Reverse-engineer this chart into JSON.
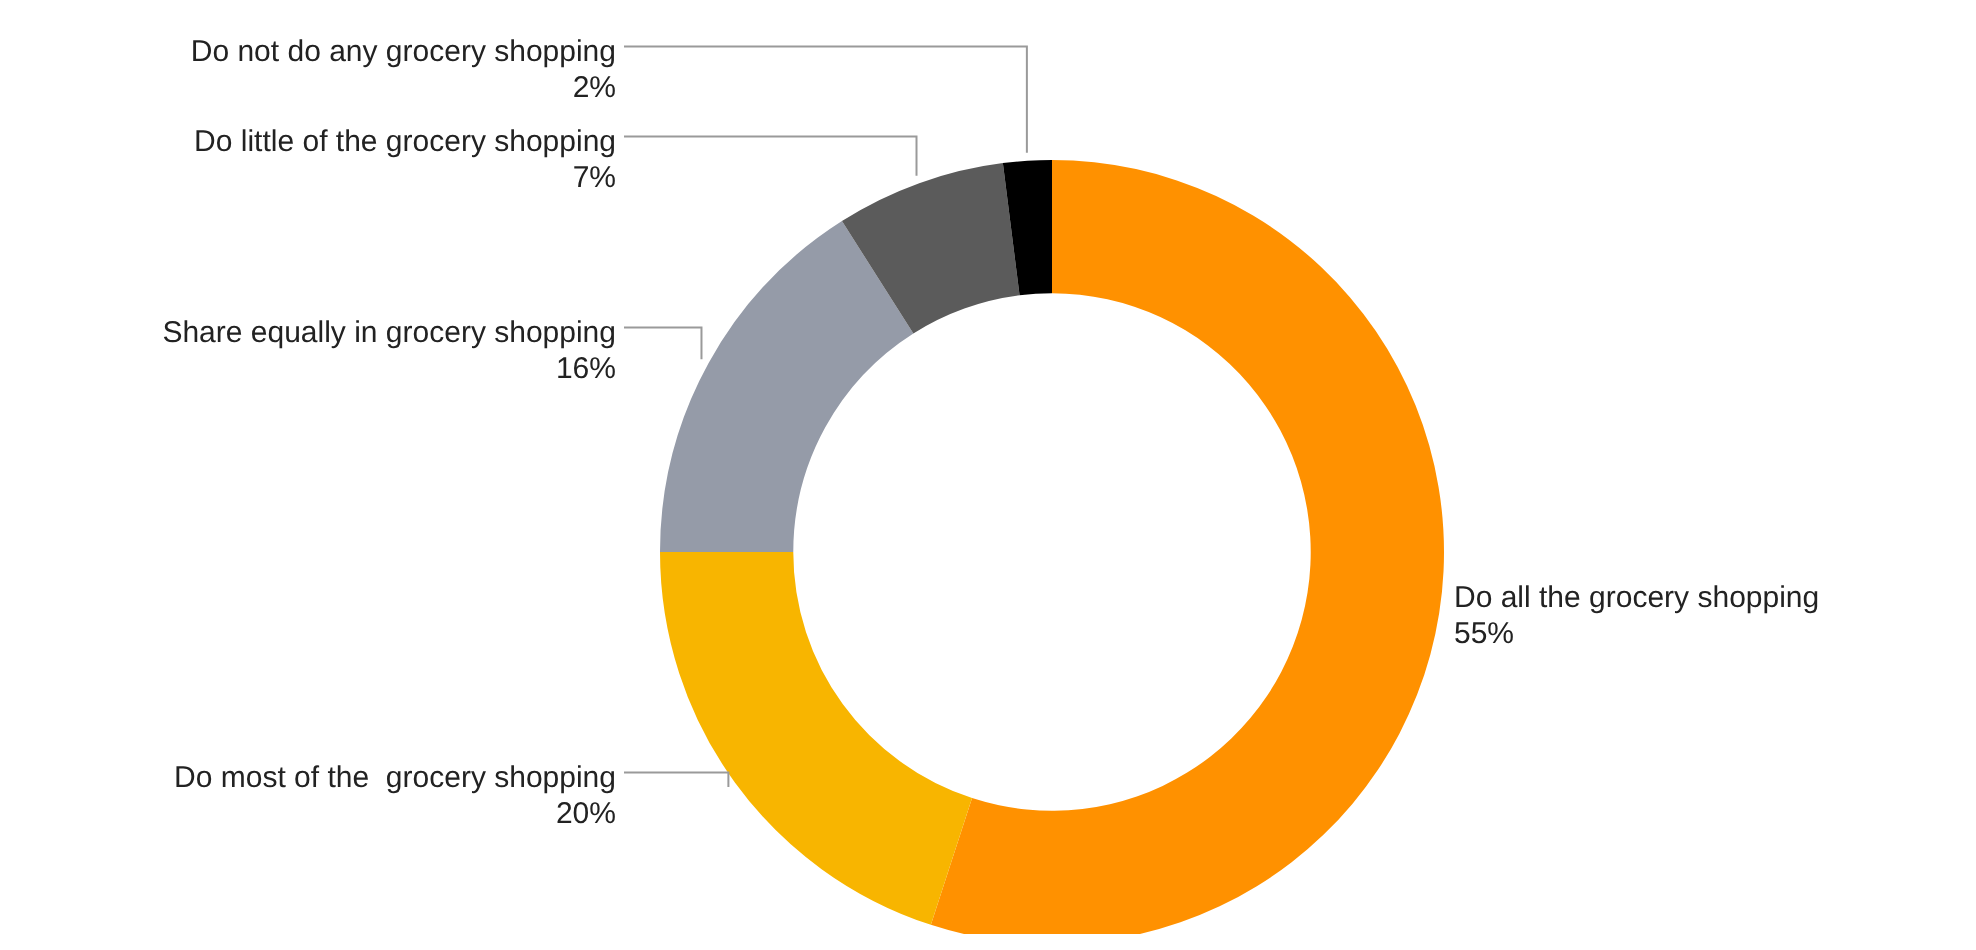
{
  "chart_data": {
    "type": "donut",
    "categories": [
      "Do all the grocery shopping",
      "Do most of the  grocery shopping",
      "Share equally in grocery shopping",
      "Do little of the grocery shopping",
      "Do not do any grocery shopping"
    ],
    "values": [
      55,
      20,
      16,
      7,
      2
    ],
    "value_labels": [
      "55%",
      "20%",
      "16%",
      "7%",
      "2%"
    ],
    "colors": [
      "#ff9100",
      "#f8b500",
      "#959ba8",
      "#5b5b5b",
      "#000000"
    ]
  }
}
